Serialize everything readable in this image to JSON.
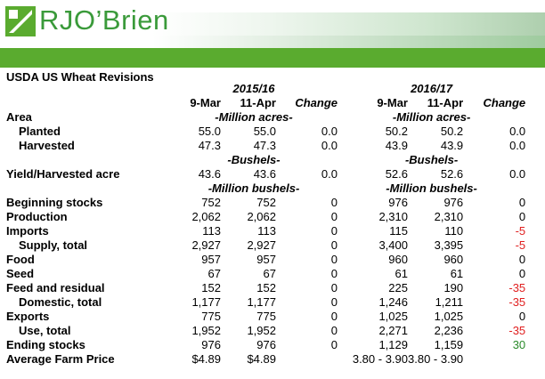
{
  "brand": {
    "name": "RJO’Brien",
    "accent": "#5aab2f"
  },
  "title": "USDA US Wheat Revisions",
  "periods": [
    "2015/16",
    "2016/17"
  ],
  "columns": [
    "9-Mar",
    "11-Apr",
    "Change",
    "9-Mar",
    "11-Apr",
    "Change"
  ],
  "rows": [
    {
      "type": "unit",
      "label": "Area",
      "u1": "-Million acres-",
      "u2": "-Million acres-"
    },
    {
      "type": "data",
      "label": "Planted",
      "indent": true,
      "v": [
        "55.0",
        "55.0",
        "0.0",
        "50.2",
        "50.2",
        "0.0"
      ]
    },
    {
      "type": "data",
      "label": "Harvested",
      "indent": true,
      "v": [
        "47.3",
        "47.3",
        "0.0",
        "43.9",
        "43.9",
        "0.0"
      ]
    },
    {
      "type": "unit",
      "label": "",
      "u1": "-Bushels-",
      "u2": "-Bushels-"
    },
    {
      "type": "data",
      "label": "Yield/Harvested acre",
      "indent": false,
      "v": [
        "43.6",
        "43.6",
        "0.0",
        "52.6",
        "52.6",
        "0.0"
      ]
    },
    {
      "type": "unit",
      "label": "",
      "u1": "-Million bushels-",
      "u2": "-Million bushels-"
    },
    {
      "type": "data",
      "label": "Beginning stocks",
      "indent": false,
      "v": [
        "752",
        "752",
        "0",
        "976",
        "976",
        "0"
      ]
    },
    {
      "type": "data",
      "label": "Production",
      "indent": false,
      "v": [
        "2,062",
        "2,062",
        "0",
        "2,310",
        "2,310",
        "0"
      ]
    },
    {
      "type": "data",
      "label": "Imports",
      "indent": false,
      "v": [
        "113",
        "113",
        "0",
        "115",
        "110",
        "-5"
      ]
    },
    {
      "type": "data",
      "label": "Supply, total",
      "indent": true,
      "v": [
        "2,927",
        "2,927",
        "0",
        "3,400",
        "3,395",
        "-5"
      ]
    },
    {
      "type": "data",
      "label": "Food",
      "indent": false,
      "v": [
        "957",
        "957",
        "0",
        "960",
        "960",
        "0"
      ]
    },
    {
      "type": "data",
      "label": "Seed",
      "indent": false,
      "v": [
        "67",
        "67",
        "0",
        "61",
        "61",
        "0"
      ]
    },
    {
      "type": "data",
      "label": "Feed and residual",
      "indent": false,
      "v": [
        "152",
        "152",
        "0",
        "225",
        "190",
        "-35"
      ]
    },
    {
      "type": "data",
      "label": "Domestic, total",
      "indent": true,
      "v": [
        "1,177",
        "1,177",
        "0",
        "1,246",
        "1,211",
        "-35"
      ]
    },
    {
      "type": "data",
      "label": "Exports",
      "indent": false,
      "v": [
        "775",
        "775",
        "0",
        "1,025",
        "1,025",
        "0"
      ]
    },
    {
      "type": "data",
      "label": "Use, total",
      "indent": true,
      "v": [
        "1,952",
        "1,952",
        "0",
        "2,271",
        "2,236",
        "-35"
      ]
    },
    {
      "type": "data",
      "label": "Ending stocks",
      "indent": false,
      "v": [
        "976",
        "976",
        "0",
        "1,129",
        "1,159",
        "30"
      ]
    },
    {
      "type": "data",
      "label": "Average Farm Price",
      "indent": false,
      "v": [
        "$4.89",
        "$4.89",
        "",
        "3.80 - 3.90",
        "3.80 - 3.90",
        ""
      ]
    }
  ]
}
